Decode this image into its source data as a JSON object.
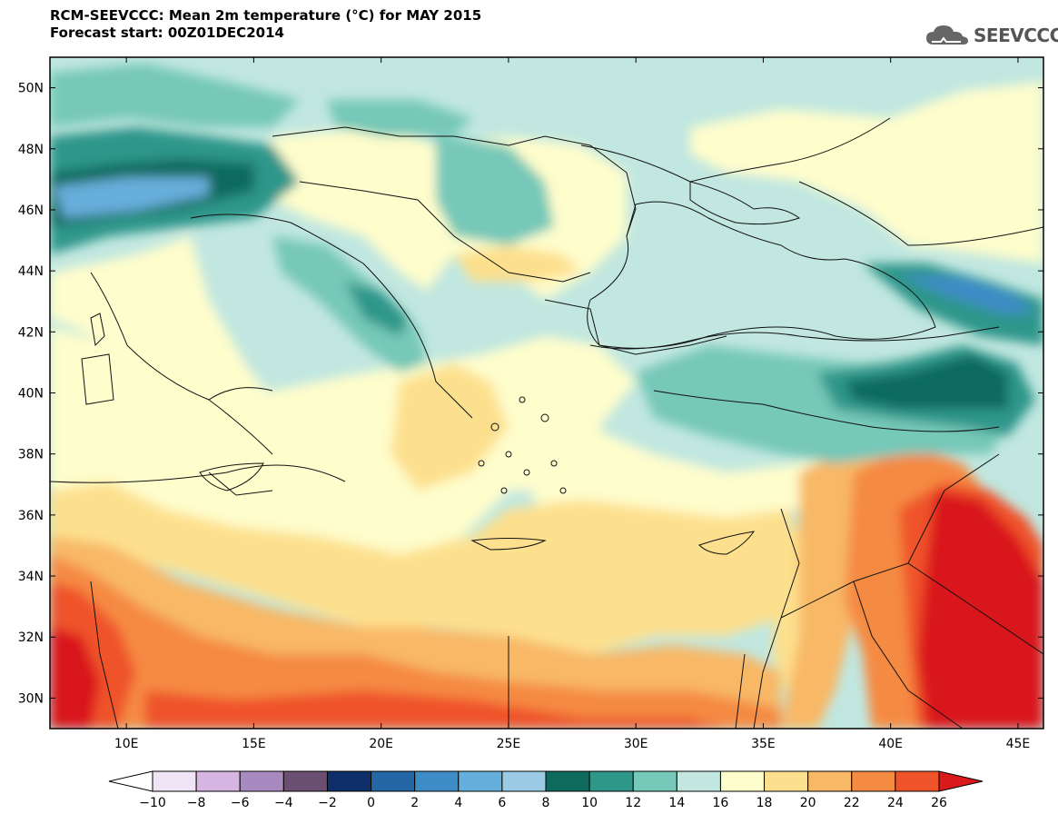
{
  "title": "RCM-SEEVCCC: Mean 2m temperature (°C) for MAY 2015",
  "subtitle": "Forecast start: 00Z01DEC2014",
  "logo": {
    "text": "SEEVCCC",
    "icon": "cloud-icon"
  },
  "map": {
    "lat_range": [
      29,
      51
    ],
    "lon_range": [
      7,
      46
    ],
    "lat_ticks": [
      "50N",
      "48N",
      "46N",
      "44N",
      "42N",
      "40N",
      "38N",
      "36N",
      "34N",
      "32N",
      "30N"
    ],
    "lon_ticks": [
      "10E",
      "15E",
      "20E",
      "25E",
      "30E",
      "35E",
      "40E",
      "45E"
    ]
  },
  "colorbar": {
    "labels": [
      "-10",
      "-8",
      "-6",
      "-4",
      "-2",
      "0",
      "2",
      "4",
      "6",
      "8",
      "10",
      "12",
      "14",
      "16",
      "18",
      "20",
      "22",
      "24",
      "26"
    ],
    "colors": [
      "#efe4f5",
      "#d6b4e4",
      "#a98ac0",
      "#6a4f72",
      "#0e2f6a",
      "#2465a3",
      "#3d8cc6",
      "#66aedb",
      "#9ccbe6",
      "#0f6a5e",
      "#2f968a",
      "#76c8b8",
      "#c1e7e0",
      "#fefdcc",
      "#fde08e",
      "#f8b866",
      "#f58a43",
      "#ef5329"
    ],
    "under_color": "#ffffff",
    "over_color": "#d9191c"
  }
}
